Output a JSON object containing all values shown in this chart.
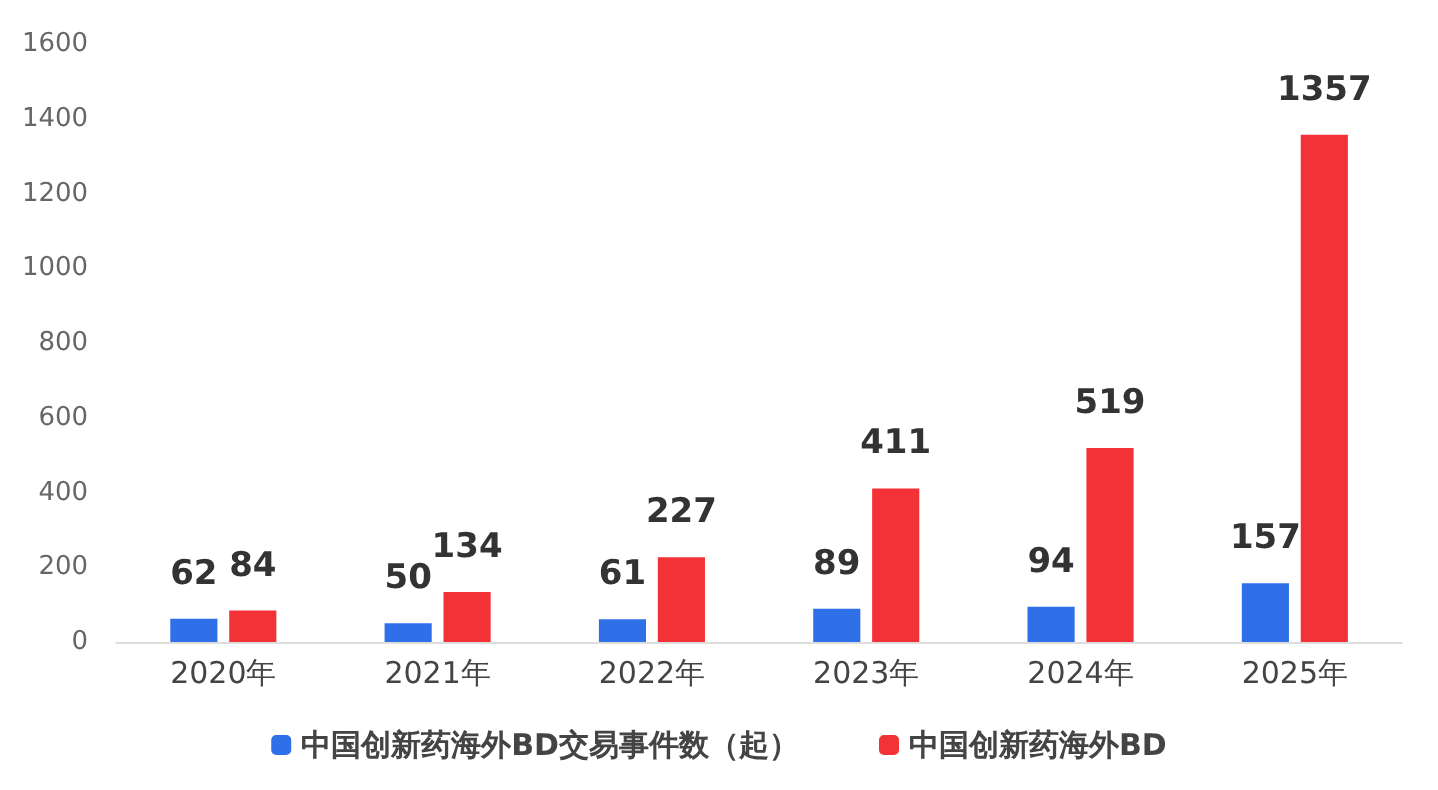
{
  "chart_data": {
    "type": "bar",
    "categories": [
      "2020年",
      "2021年",
      "2022年",
      "2023年",
      "2024年",
      "2025年"
    ],
    "series": [
      {
        "name": "中国创新药海外BD交易事件数（起）",
        "color": "#2f6fe8",
        "values": [
          62,
          50,
          61,
          89,
          94,
          157
        ]
      },
      {
        "name": "中国创新药海外BD",
        "color": "#f23236",
        "values": [
          84,
          134,
          227,
          411,
          519,
          1357
        ]
      }
    ],
    "ylim": [
      0,
      1600
    ],
    "yticks": [
      0,
      200,
      400,
      600,
      800,
      1000,
      1200,
      1400,
      1600
    ],
    "grid": false,
    "legend": "bottom",
    "data_labels": true
  }
}
